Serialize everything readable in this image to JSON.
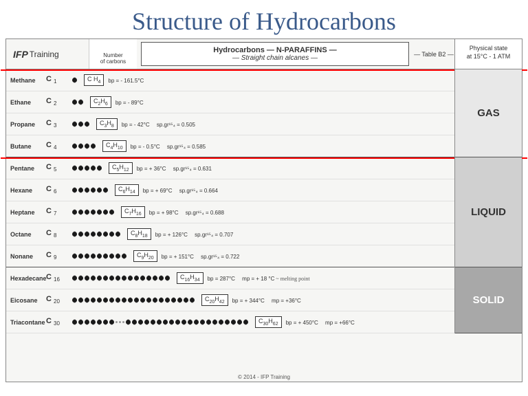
{
  "title": "Structure of Hydrocarbons",
  "logo": {
    "brand": "IFP",
    "suffix": "Training"
  },
  "header": {
    "numcarbons_l1": "Number",
    "numcarbons_l2": "of carbons",
    "mid_l1": "Hydrocarbons — N-PARAFFINS —",
    "mid_l2": "— Straight chain alcanes —",
    "tableno": "— Table B2 —",
    "phys_l1": "Physical state",
    "phys_l2": "at 15°C - 1 ATM"
  },
  "states": {
    "gas": "GAS",
    "liquid": "LIQUID",
    "solid": "SOLID"
  },
  "rows": [
    {
      "name": "Methane",
      "c": "1",
      "atoms": 1,
      "formula": "C H4",
      "bp": "bp = - 161.5°C",
      "sp": ""
    },
    {
      "name": "Ethane",
      "c": "2",
      "atoms": 2,
      "formula": "C2H6",
      "bp": "bp = - 89°C",
      "sp": ""
    },
    {
      "name": "Propane",
      "c": "3",
      "atoms": 3,
      "formula": "C3H8",
      "bp": "bp = - 42°C",
      "sp": "sp.gr¹⁵₄ = 0.505"
    },
    {
      "name": "Butane",
      "c": "4",
      "atoms": 4,
      "formula": "C4H10",
      "bp": "bp = - 0.5°C",
      "sp": "sp.gr¹⁵₄ = 0.585"
    },
    {
      "name": "Pentane",
      "c": "5",
      "atoms": 5,
      "formula": "C5H12",
      "bp": "bp = + 36°C",
      "sp": "sp.gr¹⁵₄ = 0.631"
    },
    {
      "name": "Hexane",
      "c": "6",
      "atoms": 6,
      "formula": "C6H14",
      "bp": "bp = + 69°C",
      "sp": "sp.gr¹⁵₄ = 0.664"
    },
    {
      "name": "Heptane",
      "c": "7",
      "atoms": 7,
      "formula": "C7H16",
      "bp": "bp = + 98°C",
      "sp": "sp.gr¹⁵₄ = 0.688"
    },
    {
      "name": "Octane",
      "c": "8",
      "atoms": 8,
      "formula": "C8H18",
      "bp": "bp = + 126°C",
      "sp": "sp.gr¹⁵₄ = 0.707"
    },
    {
      "name": "Nonane",
      "c": "9",
      "atoms": 9,
      "formula": "C9H20",
      "bp": "bp = + 151°C",
      "sp": "sp.gr¹⁵₄ = 0.722"
    },
    {
      "name": "Hexadecane",
      "c": "16",
      "atoms": 16,
      "formula": "C16H34",
      "bp": "bp = 287°C",
      "sp": "mp = + 18 °C",
      "note": "~ melting point"
    },
    {
      "name": "Eicosane",
      "c": "20",
      "atoms": 20,
      "formula": "C20H42",
      "bp": "bp = + 344°C",
      "sp": "mp = +36°C"
    },
    {
      "name": "Triacontane",
      "c": "30",
      "atoms": 30,
      "formula": "C30H62",
      "bp": "bp = + 450°C",
      "sp": "mp = +66°C"
    }
  ],
  "footer": "© 2014 - IFP Training",
  "colors": {
    "title": "#3a5a8a",
    "redline": "#ff0000",
    "gas_bg": "#e8e8e8",
    "liquid_bg": "#d0d0d0",
    "solid_bg": "#a8a8a8"
  }
}
